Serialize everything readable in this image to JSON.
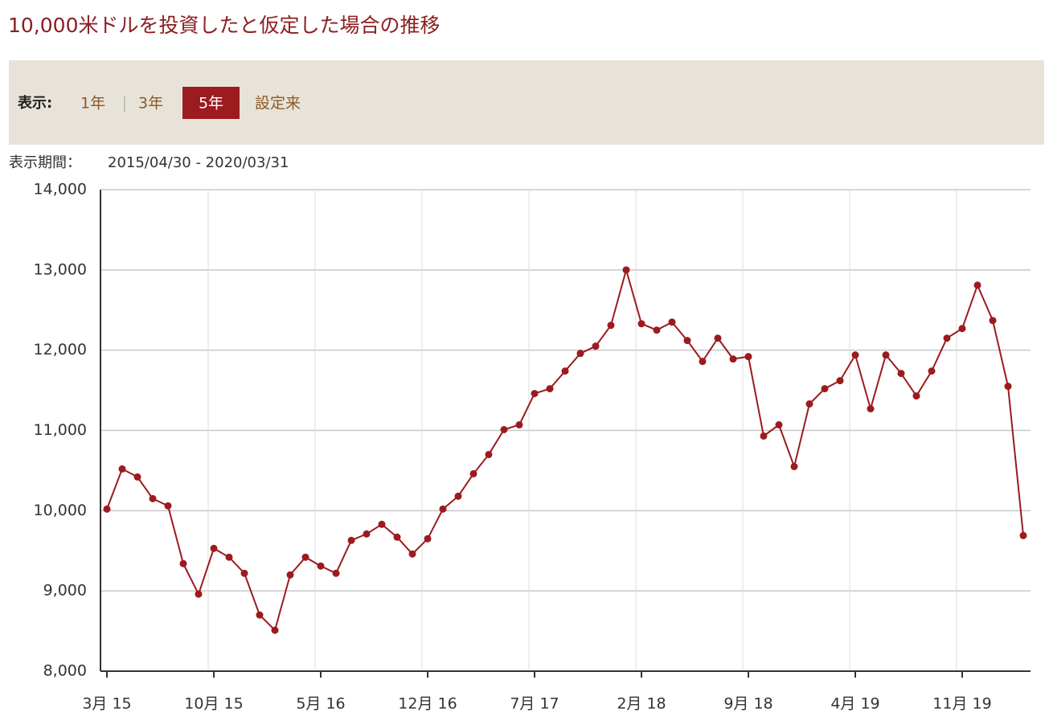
{
  "header": {
    "title": "10,000米ドルを投資したと仮定した場合の推移"
  },
  "controls": {
    "label": "表示:",
    "options": [
      "1年",
      "3年",
      "5年",
      "設定来"
    ],
    "active": 2
  },
  "period": {
    "label": "表示期間：",
    "value": "2015/04/30 - 2020/03/31"
  },
  "chart_data": {
    "type": "line",
    "color": "#9b1b1f",
    "grid": true,
    "categories": [
      "3月 15",
      null,
      null,
      null,
      null,
      null,
      null,
      "10月 15",
      null,
      null,
      null,
      null,
      null,
      null,
      "5月 16",
      null,
      null,
      null,
      null,
      null,
      null,
      "12月 16",
      null,
      null,
      null,
      null,
      null,
      null,
      "7月 17",
      null,
      null,
      null,
      null,
      null,
      null,
      "2月 18",
      null,
      null,
      null,
      null,
      null,
      null,
      "9月 18",
      null,
      null,
      null,
      null,
      null,
      null,
      "4月 19",
      null,
      null,
      null,
      null,
      null,
      null,
      "11月 19",
      null,
      null,
      null,
      null
    ],
    "values": [
      10020,
      10520,
      10420,
      10150,
      10060,
      9340,
      8960,
      9530,
      9420,
      9220,
      8700,
      8510,
      9200,
      9420,
      9310,
      9220,
      9630,
      9710,
      9830,
      9670,
      9460,
      9650,
      10020,
      10180,
      10460,
      10700,
      11010,
      11070,
      11460,
      11520,
      11740,
      11960,
      12050,
      12310,
      13000,
      12330,
      12250,
      12350,
      12120,
      11860,
      12150,
      11890,
      11920,
      10930,
      11070,
      10550,
      11330,
      11520,
      11620,
      11940,
      11270,
      11940,
      11710,
      11430,
      11740,
      12150,
      12270,
      12810,
      12370,
      11550,
      9690
    ],
    "ylim": [
      8000,
      14000
    ],
    "yticks": [
      {
        "value": 8000,
        "label": "8,000"
      },
      {
        "value": 9000,
        "label": "9,000"
      },
      {
        "value": 10000,
        "label": "10,000"
      },
      {
        "value": 11000,
        "label": "11,000"
      },
      {
        "value": 12000,
        "label": "12,000"
      },
      {
        "value": 13000,
        "label": "13,000"
      },
      {
        "value": 14000,
        "label": "14,000"
      }
    ]
  }
}
